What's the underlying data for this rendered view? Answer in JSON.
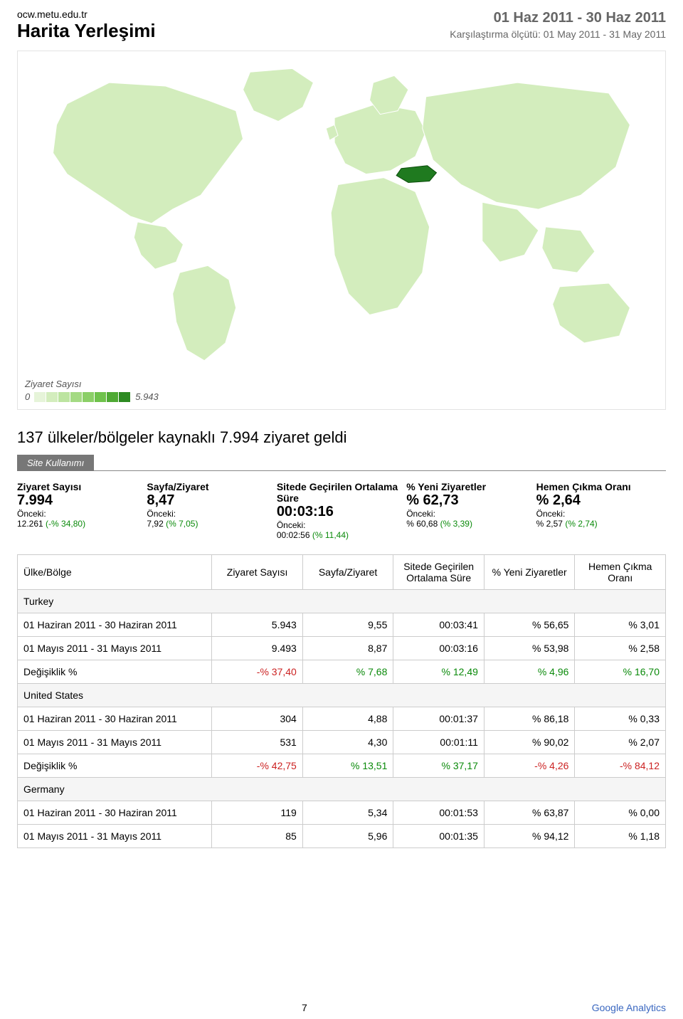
{
  "header": {
    "site": "ocw.metu.edu.tr",
    "title": "Harita Yerleşimi",
    "date_range": "01 Haz 2011 - 30 Haz 2011",
    "comparison_label": "Karşılaştırma ölçütü: 01 May 2011 - 31 May 2011"
  },
  "map": {
    "legend_title": "Ziyaret Sayısı",
    "legend_min": "0",
    "legend_max": "5.943",
    "legend_colors": [
      "#e6f4d9",
      "#d3edbd",
      "#bce4a0",
      "#a4da83",
      "#8bcf67",
      "#6fc24c",
      "#4fa934",
      "#2d8a22"
    ],
    "land_fill": "#d3edbd",
    "land_stroke": "#ffffff",
    "highlight_fill": "#1f7a1f",
    "ocean_fill": "#ffffff"
  },
  "headline": "137 ülkeler/bölgeler kaynaklı 7.994 ziyaret geldi",
  "tab_label": "Site Kullanımı",
  "metrics": [
    {
      "label": "Ziyaret Sayısı",
      "value": "7.994",
      "prev_label": "Önceki:",
      "prev_num": "12.261",
      "prev_pct": "(-% 34,80)"
    },
    {
      "label": "Sayfa/Ziyaret",
      "value": "8,47",
      "prev_label": "Önceki:",
      "prev_num": "7,92",
      "prev_pct": "(% 7,05)"
    },
    {
      "label": "Sitede Geçirilen Ortalama Süre",
      "value": "00:03:16",
      "prev_label": "Önceki:",
      "prev_num": "00:02:56",
      "prev_pct": "(% 11,44)"
    },
    {
      "label": "% Yeni Ziyaretler",
      "value": "% 62,73",
      "prev_label": "Önceki:",
      "prev_num": "% 60,68",
      "prev_pct": "(% 3,39)"
    },
    {
      "label": "Hemen Çıkma Oranı",
      "value": "% 2,64",
      "prev_label": "Önceki:",
      "prev_num": "% 2,57",
      "prev_pct": "(% 2,74)"
    }
  ],
  "table": {
    "columns": [
      "Ülke/Bölge",
      "Ziyaret Sayısı",
      "Sayfa/Ziyaret",
      "Sitede Geçirilen Ortalama Süre",
      "% Yeni Ziyaretler",
      "Hemen Çıkma Oranı"
    ],
    "groups": [
      {
        "name": "Turkey",
        "rows": [
          {
            "label": "01 Haziran 2011 - 30 Haziran 2011",
            "cells": [
              "5.943",
              "9,55",
              "00:03:41",
              "% 56,65",
              "% 3,01"
            ]
          },
          {
            "label": "01 Mayıs 2011 - 31 Mayıs 2011",
            "cells": [
              "9.493",
              "8,87",
              "00:03:16",
              "% 53,98",
              "% 2,58"
            ]
          }
        ],
        "change": {
          "label": "Değişiklik %",
          "cells": [
            {
              "v": "-% 37,40",
              "neg": true
            },
            {
              "v": "% 7,68",
              "neg": false
            },
            {
              "v": "% 12,49",
              "neg": false
            },
            {
              "v": "% 4,96",
              "neg": false
            },
            {
              "v": "% 16,70",
              "neg": false
            }
          ]
        }
      },
      {
        "name": "United States",
        "rows": [
          {
            "label": "01 Haziran 2011 - 30 Haziran 2011",
            "cells": [
              "304",
              "4,88",
              "00:01:37",
              "% 86,18",
              "% 0,33"
            ]
          },
          {
            "label": "01 Mayıs 2011 - 31 Mayıs 2011",
            "cells": [
              "531",
              "4,30",
              "00:01:11",
              "% 90,02",
              "% 2,07"
            ]
          }
        ],
        "change": {
          "label": "Değişiklik %",
          "cells": [
            {
              "v": "-% 42,75",
              "neg": true
            },
            {
              "v": "% 13,51",
              "neg": false
            },
            {
              "v": "% 37,17",
              "neg": false
            },
            {
              "v": "-% 4,26",
              "neg": true
            },
            {
              "v": "-% 84,12",
              "neg": true
            }
          ]
        }
      },
      {
        "name": "Germany",
        "rows": [
          {
            "label": "01 Haziran 2011 - 30 Haziran 2011",
            "cells": [
              "119",
              "5,34",
              "00:01:53",
              "% 63,87",
              "% 0,00"
            ]
          },
          {
            "label": "01 Mayıs 2011 - 31 Mayıs 2011",
            "cells": [
              "85",
              "5,96",
              "00:01:35",
              "% 94,12",
              "% 1,18"
            ]
          }
        ],
        "change": null
      }
    ]
  },
  "footer": {
    "page_number": "7",
    "brand": "Google Analytics"
  },
  "colors": {
    "pos": "#0a8a0a",
    "neg": "#c22020"
  }
}
